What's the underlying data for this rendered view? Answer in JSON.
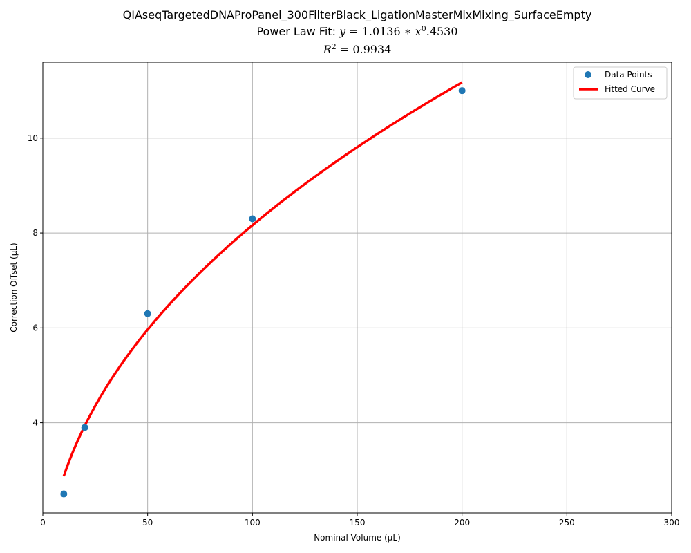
{
  "chart_data": {
    "type": "scatter",
    "title": "QIAseqTargetedDNAProPanel_300FilterBlack_LigationMasterMixMixing_SurfaceEmpty",
    "subtitle_prefix": "Power Law Fit: ",
    "fit_equation": {
      "lhs": "y",
      "coefficient": "1.0136",
      "base": "x",
      "exponent": "0",
      "tail": ".4530"
    },
    "r2_label": "R",
    "r2_superscript": "2",
    "r2_value": "0.9934",
    "xlabel": "Nominal Volume (µL)",
    "ylabel": "Correction Offset (µL)",
    "xlim": [
      0,
      300
    ],
    "ylim": [
      2.1,
      11.6
    ],
    "xticks": [
      0,
      50,
      100,
      150,
      200,
      250,
      300
    ],
    "yticks": [
      4,
      6,
      8,
      10
    ],
    "grid": true,
    "legend_position": "top-right",
    "series": [
      {
        "name": "Data Points",
        "kind": "scatter",
        "color": "#1f77b4",
        "x": [
          10,
          20,
          50,
          100,
          200
        ],
        "y": [
          2.5,
          3.9,
          6.3,
          8.3,
          11.0
        ]
      },
      {
        "name": "Fitted Curve",
        "kind": "line",
        "color": "#ff0000",
        "fit": {
          "a": 1.0136,
          "b": 0.453,
          "x_from": 10,
          "x_to": 200
        }
      }
    ]
  }
}
